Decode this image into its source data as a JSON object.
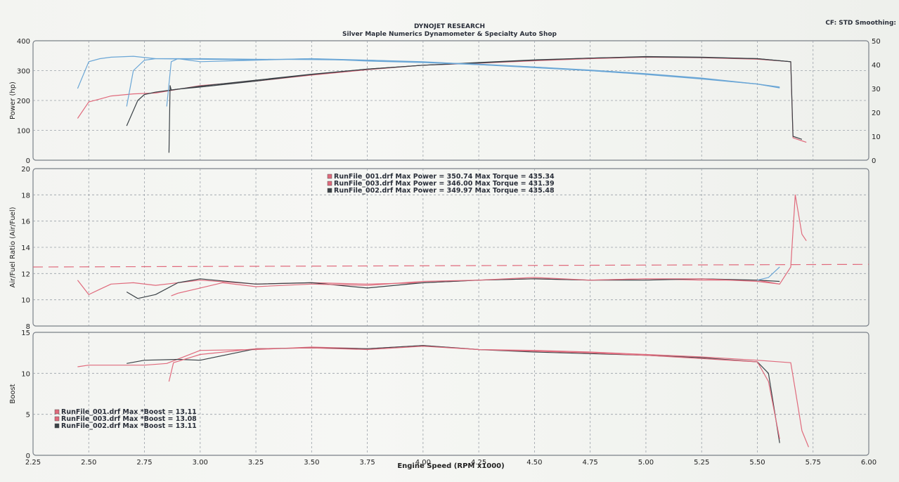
{
  "header": {
    "title": "DYNOJET RESEARCH",
    "subtitle": "Silver Maple Numerics Dynamometer & Specialty Auto Shop",
    "cf_text": "CF: STD  Smoothing:"
  },
  "colors": {
    "red": "#e06a7c",
    "blue": "#6aa6d6",
    "black": "#3a4146",
    "grid": "#9aa0a8",
    "frame": "#7a8088"
  },
  "chart_data": [
    {
      "type": "line",
      "panel": "power",
      "xlabel": "",
      "ylabel": "Power (hp)",
      "xlim": [
        2.25,
        6.0
      ],
      "ylim": [
        0,
        400
      ],
      "yticks": [
        "0",
        "100",
        "200",
        "300",
        "400"
      ],
      "y2lim": [
        0,
        50
      ],
      "y2ticks": [
        "0",
        "10",
        "20",
        "30",
        "40",
        "50"
      ],
      "grid": true,
      "series": [
        {
          "color_key": "red",
          "x": [
            2.45,
            2.5,
            2.55,
            2.6,
            2.7,
            2.8,
            3.0,
            3.25,
            3.5,
            3.75,
            4.0,
            4.25,
            4.5,
            4.75,
            5.0,
            5.25,
            5.5,
            5.65,
            5.66,
            5.68,
            5.72
          ],
          "y": [
            140,
            195,
            205,
            215,
            222,
            225,
            250,
            265,
            285,
            303,
            318,
            325,
            333,
            340,
            345,
            343,
            338,
            330,
            75,
            70,
            60
          ]
        },
        {
          "color_key": "black",
          "x": [
            2.67,
            2.72,
            2.75,
            2.8,
            3.0,
            3.25,
            3.5,
            3.75,
            4.0,
            4.25,
            4.5,
            4.75,
            5.0,
            5.25,
            5.5,
            5.65,
            5.66,
            5.7
          ],
          "y": [
            115,
            200,
            220,
            228,
            248,
            268,
            288,
            305,
            318,
            326,
            335,
            342,
            346,
            344,
            340,
            330,
            80,
            70
          ]
        },
        {
          "color_key": "black",
          "x": [
            2.86,
            2.865,
            2.87,
            2.9,
            3.0,
            3.25,
            3.5,
            3.75,
            4.0,
            4.25,
            4.5,
            4.75,
            5.0,
            5.25,
            5.5,
            5.65
          ],
          "y": [
            25,
            250,
            235,
            238,
            245,
            265,
            287,
            305,
            318,
            327,
            336,
            342,
            347,
            345,
            340,
            330
          ]
        },
        {
          "color_key": "blue",
          "x": [
            2.45,
            2.5,
            2.55,
            2.6,
            2.7,
            2.8,
            3.0,
            3.25,
            3.5,
            3.75,
            4.0,
            4.25,
            4.5,
            4.75,
            5.0,
            5.25,
            5.5,
            5.6
          ],
          "y": [
            240,
            330,
            340,
            345,
            348,
            340,
            338,
            336,
            340,
            335,
            330,
            320,
            312,
            302,
            290,
            275,
            255,
            245
          ]
        },
        {
          "color_key": "blue",
          "x": [
            2.67,
            2.7,
            2.75,
            2.8,
            3.0,
            3.25,
            3.5,
            3.75,
            4.0,
            4.25,
            4.5,
            4.75,
            5.0,
            5.25,
            5.5,
            5.6
          ],
          "y": [
            180,
            300,
            335,
            340,
            340,
            338,
            337,
            335,
            328,
            322,
            312,
            300,
            288,
            273,
            255,
            243
          ]
        },
        {
          "color_key": "blue",
          "x": [
            2.85,
            2.87,
            2.9,
            3.0,
            3.25,
            3.5,
            3.75,
            4.0,
            4.25,
            4.5,
            4.75,
            5.0,
            5.25,
            5.5,
            5.6
          ],
          "y": [
            180,
            330,
            340,
            330,
            335,
            340,
            332,
            327,
            320,
            310,
            300,
            287,
            272,
            255,
            242
          ]
        }
      ]
    },
    {
      "type": "line",
      "panel": "afr",
      "xlabel": "",
      "ylabel": "Air/Fuel Ratio (Air/Fuel)",
      "xlim": [
        2.25,
        6.0
      ],
      "ylim": [
        8,
        20
      ],
      "yticks": [
        "8",
        "10",
        "12",
        "14",
        "16",
        "18",
        "20"
      ],
      "grid": true,
      "legend": [
        {
          "text": "RunFile_001.drf Max Power = 350.74     Max Torque = 435.34",
          "color_key": "red"
        },
        {
          "text": "RunFile_003.drf Max Power = 346.00     Max Torque = 431.39",
          "color_key": "red"
        },
        {
          "text": "RunFile_002.drf Max Power = 349.97     Max Torque = 435.48",
          "color_key": "black"
        }
      ],
      "reference": {
        "color_key": "red",
        "x": [
          2.25,
          6.0
        ],
        "y": [
          12.5,
          12.7
        ]
      },
      "series": [
        {
          "color_key": "red",
          "x": [
            2.45,
            2.5,
            2.55,
            2.6,
            2.7,
            2.8,
            3.0,
            3.25,
            3.5,
            3.75,
            4.0,
            4.25,
            4.5,
            4.75,
            5.0,
            5.25,
            5.5,
            5.6,
            5.65,
            5.67,
            5.7,
            5.72
          ],
          "y": [
            11.5,
            10.4,
            10.8,
            11.2,
            11.3,
            11.1,
            11.5,
            11.2,
            11.3,
            11.2,
            11.3,
            11.5,
            11.6,
            11.5,
            11.6,
            11.5,
            11.5,
            11.2,
            12.5,
            18,
            15,
            14.5
          ]
        },
        {
          "color_key": "black",
          "x": [
            2.67,
            2.72,
            2.8,
            2.9,
            3.0,
            3.25,
            3.5,
            3.75,
            4.0,
            4.25,
            4.5,
            4.75,
            5.0,
            5.25,
            5.5,
            5.6
          ],
          "y": [
            10.6,
            10.1,
            10.4,
            11.3,
            11.6,
            11.2,
            11.3,
            10.9,
            11.3,
            11.5,
            11.6,
            11.5,
            11.5,
            11.6,
            11.5,
            11.4
          ]
        },
        {
          "color_key": "red",
          "x": [
            2.87,
            2.9,
            3.0,
            3.1,
            3.25,
            3.5,
            3.75,
            4.0,
            4.25,
            4.5,
            4.75,
            5.0,
            5.25,
            5.5,
            5.6
          ],
          "y": [
            10.3,
            10.5,
            10.9,
            11.3,
            11.0,
            11.2,
            11.1,
            11.4,
            11.5,
            11.7,
            11.5,
            11.6,
            11.6,
            11.4,
            11.2
          ]
        },
        {
          "color_key": "blue",
          "x": [
            5.5,
            5.55,
            5.6
          ],
          "y": [
            11.5,
            11.7,
            12.5
          ]
        }
      ]
    },
    {
      "type": "line",
      "panel": "boost",
      "xlabel": "Engine Speed (RPM x1000)",
      "ylabel": "Boost",
      "xlim": [
        2.25,
        6.0
      ],
      "xticks": [
        "2.25",
        "2.50",
        "2.75",
        "3.00",
        "3.25",
        "3.50",
        "3.75",
        "4.00",
        "4.25",
        "4.50",
        "4.75",
        "5.00",
        "5.25",
        "5.50",
        "5.75",
        "6.00"
      ],
      "ylim": [
        0,
        15
      ],
      "yticks": [
        "0",
        "5",
        "10",
        "15"
      ],
      "grid": true,
      "legend": [
        {
          "text": "RunFile_001.drf Max *Boost = 13.11",
          "color_key": "red"
        },
        {
          "text": "RunFile_003.drf Max *Boost = 13.08",
          "color_key": "red"
        },
        {
          "text": "RunFile_002.drf Max *Boost = 13.11",
          "color_key": "black"
        }
      ],
      "series": [
        {
          "color_key": "red",
          "x": [
            2.45,
            2.5,
            2.75,
            2.85,
            3.0,
            3.25,
            3.5,
            3.75,
            4.0,
            4.25,
            4.5,
            4.75,
            5.0,
            5.25,
            5.5,
            5.65,
            5.67,
            5.7,
            5.73
          ],
          "y": [
            10.8,
            11.0,
            11.0,
            11.2,
            12.8,
            12.9,
            13.2,
            13.0,
            13.4,
            12.9,
            12.8,
            12.6,
            12.3,
            12.0,
            11.6,
            11.3,
            8.0,
            3.0,
            1.0
          ]
        },
        {
          "color_key": "black",
          "x": [
            2.67,
            2.75,
            2.9,
            3.0,
            3.25,
            3.5,
            3.75,
            4.0,
            4.25,
            4.5,
            4.75,
            5.0,
            5.25,
            5.5,
            5.55,
            5.6
          ],
          "y": [
            11.2,
            11.6,
            11.7,
            11.6,
            13.0,
            13.1,
            13.0,
            13.4,
            12.9,
            12.6,
            12.4,
            12.2,
            11.9,
            11.4,
            10.0,
            1.5
          ]
        },
        {
          "color_key": "red",
          "x": [
            2.86,
            2.88,
            3.0,
            3.25,
            3.5,
            3.75,
            4.0,
            4.25,
            4.5,
            4.75,
            5.0,
            5.25,
            5.5,
            5.55,
            5.6
          ],
          "y": [
            9.0,
            11.3,
            12.3,
            13.0,
            13.1,
            12.9,
            13.3,
            12.9,
            12.7,
            12.5,
            12.2,
            11.8,
            11.4,
            9.0,
            2.0
          ]
        }
      ]
    }
  ]
}
